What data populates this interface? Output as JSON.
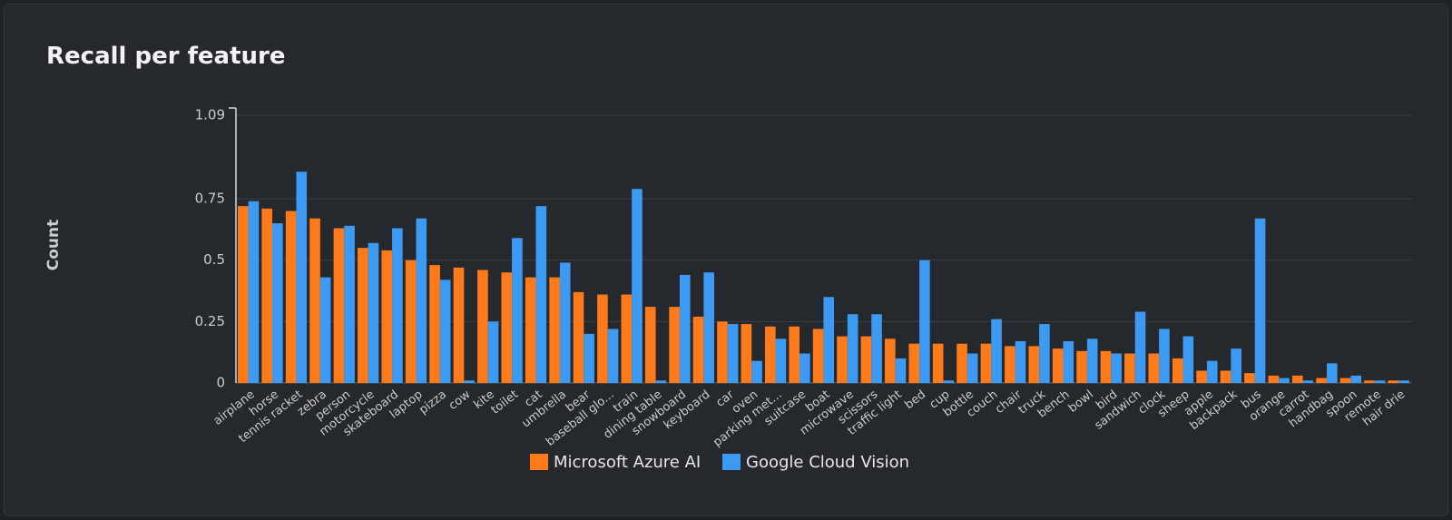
{
  "panel": {
    "title": "Recall per feature"
  },
  "chart_data": {
    "type": "bar",
    "title": "Recall per feature",
    "xlabel": "",
    "ylabel": "Count",
    "ylim": [
      0,
      1.09
    ],
    "yticks": [
      0,
      0.25,
      0.5,
      0.75,
      1.09
    ],
    "ytick_labels": [
      "0",
      "0.25",
      "0.5",
      "0.75",
      "1.09"
    ],
    "grid": true,
    "legend_position": "bottom-center",
    "categories": [
      "airplane",
      "horse",
      "tennis racket",
      "zebra",
      "person",
      "motorcycle",
      "skateboard",
      "laptop",
      "pizza",
      "cow",
      "kite",
      "toilet",
      "cat",
      "umbrella",
      "bear",
      "baseball glo...",
      "train",
      "dining table",
      "snowboard",
      "keyboard",
      "car",
      "oven",
      "parking met...",
      "suitcase",
      "boat",
      "microwave",
      "scissors",
      "traffic light",
      "bed",
      "cup",
      "bottle",
      "couch",
      "chair",
      "truck",
      "bench",
      "bowl",
      "bird",
      "sandwich",
      "clock",
      "sheep",
      "apple",
      "backpack",
      "bus",
      "orange",
      "carrot",
      "handbag",
      "spoon",
      "remote",
      "hair drie"
    ],
    "series": [
      {
        "name": "Microsoft Azure AI",
        "color": "#ff7a1a",
        "values": [
          0.72,
          0.71,
          0.7,
          0.67,
          0.63,
          0.55,
          0.54,
          0.5,
          0.48,
          0.47,
          0.46,
          0.45,
          0.43,
          0.43,
          0.37,
          0.36,
          0.36,
          0.31,
          0.31,
          0.27,
          0.25,
          0.24,
          0.23,
          0.23,
          0.22,
          0.19,
          0.19,
          0.18,
          0.16,
          0.16,
          0.16,
          0.16,
          0.15,
          0.15,
          0.14,
          0.13,
          0.13,
          0.12,
          0.12,
          0.1,
          0.05,
          0.05,
          0.04,
          0.03,
          0.03,
          0.02,
          0.02,
          0.01,
          0.01
        ]
      },
      {
        "name": "Google Cloud Vision",
        "color": "#3d9af2",
        "values": [
          0.74,
          0.65,
          0.86,
          0.43,
          0.64,
          0.57,
          0.63,
          0.67,
          0.42,
          0.01,
          0.25,
          0.59,
          0.72,
          0.49,
          0.2,
          0.22,
          0.79,
          0.01,
          0.44,
          0.45,
          0.24,
          0.09,
          0.18,
          0.12,
          0.35,
          0.28,
          0.28,
          0.1,
          0.5,
          0.01,
          0.12,
          0.26,
          0.17,
          0.24,
          0.17,
          0.18,
          0.12,
          0.29,
          0.22,
          0.19,
          0.09,
          0.14,
          0.67,
          0.02,
          0.01,
          0.08,
          0.03,
          0.01,
          0.01
        ]
      }
    ]
  }
}
